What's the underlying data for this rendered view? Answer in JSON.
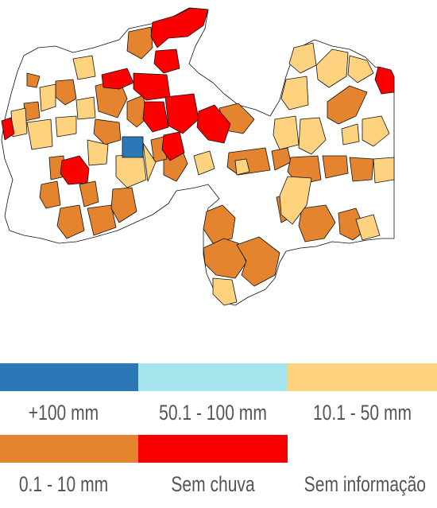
{
  "legend": {
    "items": [
      {
        "label": "+100 mm",
        "color": "#2c78b6"
      },
      {
        "label": "50.1 - 100 mm",
        "color": "#a5e5ee"
      },
      {
        "label": "10.1 - 50 mm",
        "color": "#fdd380"
      },
      {
        "label": "0.1 - 10 mm",
        "color": "#e5842e"
      },
      {
        "label": "Sem chuva",
        "color": "#fa0000"
      },
      {
        "label": "Sem informação",
        "color": "#ffffff"
      }
    ]
  }
}
